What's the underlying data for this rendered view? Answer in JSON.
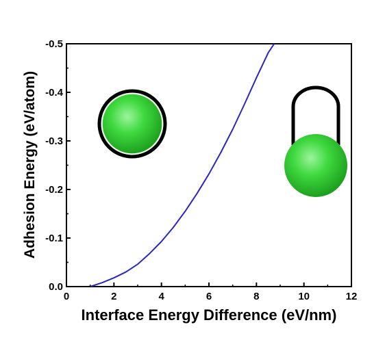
{
  "chart_data": {
    "type": "line",
    "title": "",
    "xlabel": "Interface Energy Difference (eV/nm)",
    "ylabel": "Adhesion Energy (eV/atom)",
    "xlim": [
      0,
      12
    ],
    "ylim": [
      0.0,
      -0.5
    ],
    "x_ticks": [
      "0",
      "2",
      "4",
      "6",
      "8",
      "10",
      "12"
    ],
    "y_ticks": [
      "0.0",
      "-0.1",
      "-0.2",
      "-0.3",
      "-0.4",
      "-0.5"
    ],
    "series": [
      {
        "color": "#2727c8",
        "x": [
          1.0,
          1.5,
          2.0,
          2.5,
          3.0,
          3.5,
          4.0,
          4.5,
          5.0,
          5.5,
          6.0,
          6.5,
          7.0,
          7.5,
          8.0,
          8.5,
          8.75
        ],
        "y": [
          0.0,
          -0.008,
          -0.018,
          -0.03,
          -0.046,
          -0.068,
          -0.093,
          -0.122,
          -0.155,
          -0.192,
          -0.232,
          -0.276,
          -0.324,
          -0.376,
          -0.43,
          -0.482,
          -0.5
        ]
      }
    ],
    "insets": [
      {
        "name": "encapsulated-particle",
        "description_icon": "green-sphere-in-ring-icon",
        "color": "#3fd93f"
      },
      {
        "name": "arch-particle",
        "description_icon": "green-sphere-with-arch-icon",
        "color": "#3fd93f"
      }
    ],
    "grid": false,
    "legend": "none"
  }
}
